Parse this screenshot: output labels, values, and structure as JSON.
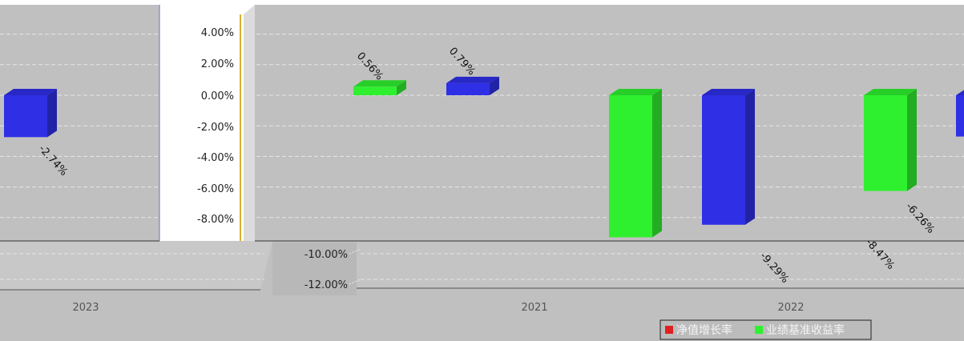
{
  "chart_data": {
    "type": "bar",
    "categories": [
      "2023",
      "2021",
      "2022"
    ],
    "yaxis": {
      "ylim": [
        -12,
        4
      ],
      "ticks": [
        "4.00%",
        "2.00%",
        "0.00%",
        "-2.00%",
        "-4.00%",
        "-6.00%",
        "-8.00%",
        "-10.00%",
        "-12.00%"
      ]
    },
    "bars": [
      {
        "category": "2023",
        "color": "#2f2fe6",
        "value": -2.74,
        "label": "-2.74%"
      },
      {
        "category": "2021",
        "color": "#2ff02f",
        "value": 0.56,
        "label": "0.56%"
      },
      {
        "category": "2021",
        "color": "#2f2fe6",
        "value": 0.79,
        "label": "0.79%"
      },
      {
        "category": "2021",
        "color": "#2ff02f",
        "value": -9.29,
        "label": "-9.29%"
      },
      {
        "category": "2022",
        "color": "#2f2fe6",
        "value": -8.47,
        "label": "-8.47%"
      },
      {
        "category": "2022",
        "color": "#2ff02f",
        "value": -6.26,
        "label": "-6.26%"
      },
      {
        "category": "2022",
        "color": "#2f2fe6",
        "value": -2.7,
        "label": ""
      }
    ],
    "legend": {
      "placement": "bottom-right",
      "items": [
        {
          "label": "净值增长率",
          "color": "#e02020"
        },
        {
          "label": "业绩基准收益率",
          "color": "#2ff02f"
        }
      ]
    },
    "grid": true
  }
}
